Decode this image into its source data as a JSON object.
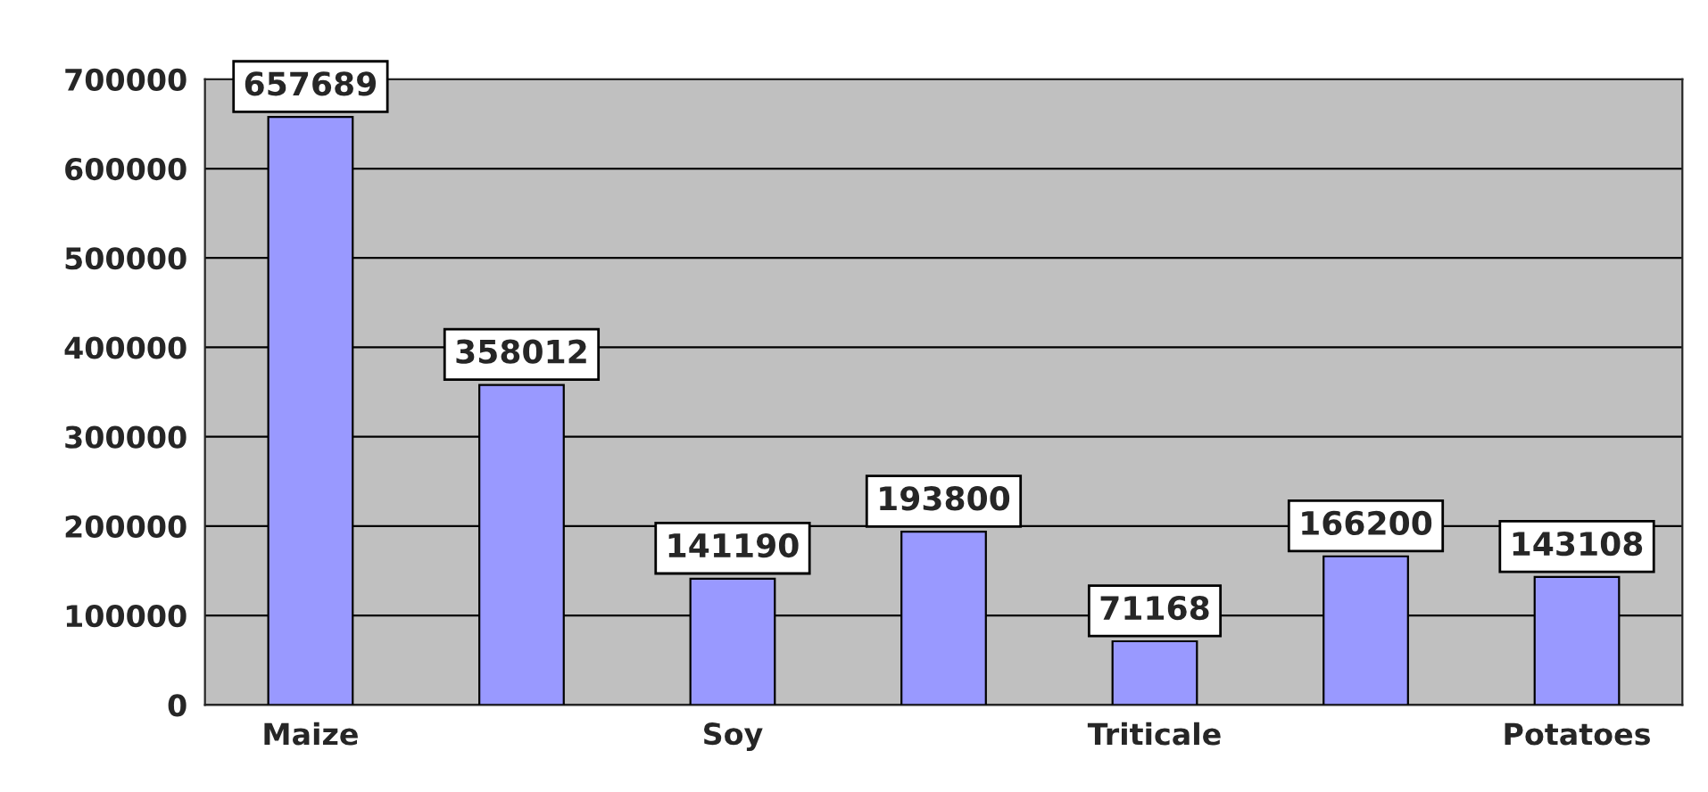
{
  "chart_data": {
    "type": "bar",
    "categories": [
      "Maize",
      null,
      "Soy",
      null,
      "Triticale",
      null,
      "Potatoes"
    ],
    "values": [
      657689,
      358012,
      141190,
      193800,
      71168,
      166200,
      143108
    ],
    "color": "#9999ff",
    "ylim": [
      0,
      700000
    ],
    "yticks": [
      0,
      100000,
      200000,
      300000,
      400000,
      500000,
      600000,
      700000
    ],
    "grid": "y",
    "data_labels": true
  }
}
